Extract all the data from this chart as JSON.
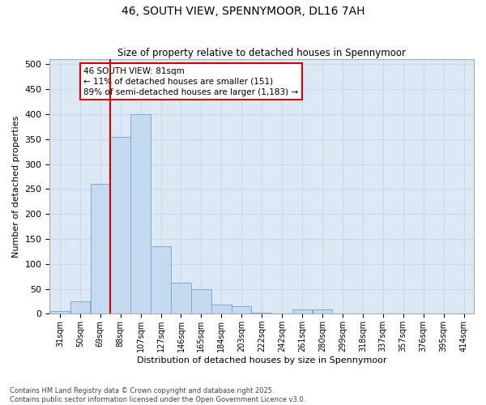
{
  "title": "46, SOUTH VIEW, SPENNYMOOR, DL16 7AH",
  "subtitle": "Size of property relative to detached houses in Spennymoor",
  "xlabel": "Distribution of detached houses by size in Spennymoor",
  "ylabel": "Number of detached properties",
  "bin_labels": [
    "31sqm",
    "50sqm",
    "69sqm",
    "88sqm",
    "107sqm",
    "127sqm",
    "146sqm",
    "165sqm",
    "184sqm",
    "203sqm",
    "222sqm",
    "242sqm",
    "261sqm",
    "280sqm",
    "299sqm",
    "318sqm",
    "337sqm",
    "357sqm",
    "376sqm",
    "395sqm",
    "414sqm"
  ],
  "bar_heights": [
    5,
    25,
    260,
    355,
    400,
    135,
    62,
    50,
    18,
    15,
    2,
    1,
    8,
    8,
    1,
    0,
    0,
    0,
    1,
    0,
    0
  ],
  "bar_color": "#c5d9ef",
  "bar_edge_color": "#7aadd4",
  "grid_color": "#c8d8ea",
  "bg_color": "#dce9f5",
  "property_line_x": 2,
  "property_line_color": "#cc0000",
  "annotation_text": "46 SOUTH VIEW: 81sqm\n← 11% of detached houses are smaller (151)\n89% of semi-detached houses are larger (1,183) →",
  "annotation_box_color": "#ffffff",
  "annotation_box_edge_color": "#cc0000",
  "footer_text": "Contains HM Land Registry data © Crown copyright and database right 2025.\nContains public sector information licensed under the Open Government Licence v3.0.",
  "ylim": [
    0,
    510
  ],
  "yticks": [
    0,
    50,
    100,
    150,
    200,
    250,
    300,
    350,
    400,
    450,
    500
  ]
}
